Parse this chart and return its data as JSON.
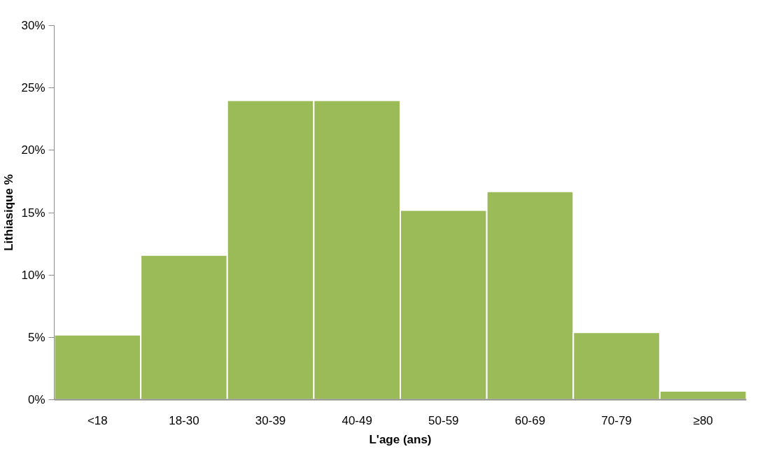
{
  "chart_data": {
    "type": "bar",
    "xlabel": "L'age (ans)",
    "ylabel": "Lithiasique %",
    "categories": [
      "<18",
      "18-30",
      "30-39",
      "40-49",
      "50-59",
      "60-69",
      "70-79",
      "≥80"
    ],
    "values": [
      5.2,
      11.6,
      24.0,
      24.0,
      15.2,
      16.7,
      5.4,
      0.7
    ],
    "color": "#9bbb59",
    "ylim": [
      0,
      30
    ],
    "yticks": [
      {
        "value": 0,
        "label": "0%"
      },
      {
        "value": 5,
        "label": "5%"
      },
      {
        "value": 10,
        "label": "10%"
      },
      {
        "value": 15,
        "label": "15%"
      },
      {
        "value": 20,
        "label": "20%"
      },
      {
        "value": 25,
        "label": "25%"
      },
      {
        "value": 30,
        "label": "30%"
      }
    ],
    "grid": false
  }
}
